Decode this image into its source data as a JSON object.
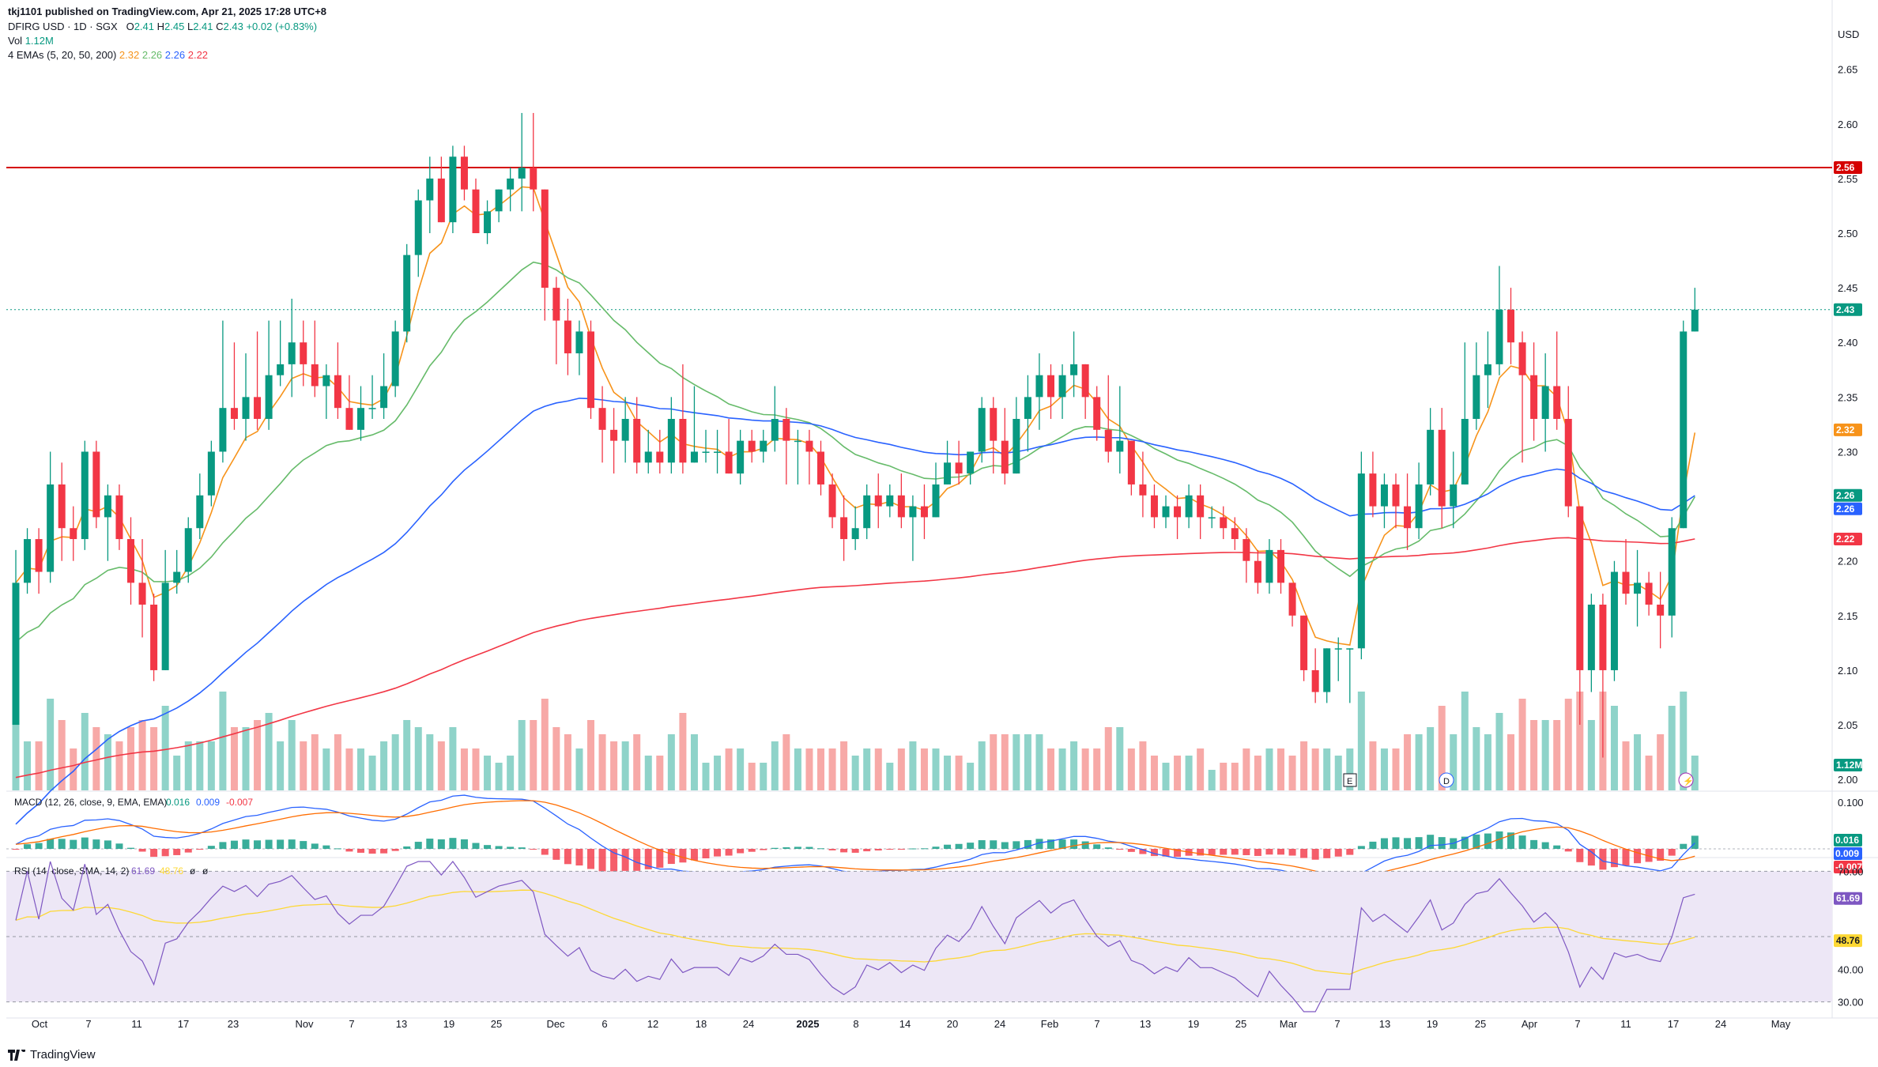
{
  "header": {
    "published": "tkj1101 published on TradingView.com, Apr 21, 2025 17:28 UTC+8",
    "symbol": "DFIRG USD · 1D · SGX",
    "o_label": "O",
    "o": "2.41",
    "h_label": "H",
    "h": "2.45",
    "l_label": "L",
    "l": "2.41",
    "c_label": "C",
    "c": "2.43",
    "change": "+0.02 (+0.83%)",
    "vol_label": "Vol",
    "vol": "1.12M",
    "emas_label": "4 EMAs (5, 20, 50, 200)",
    "ema_values": [
      "2.32",
      "2.26",
      "2.26",
      "2.22"
    ]
  },
  "currency": "USD",
  "footer": {
    "brand": "TradingView"
  },
  "colors": {
    "up": "#089981",
    "down": "#f23645",
    "up_vol": "#8fd3c9",
    "down_vol": "#f7a9a7",
    "ema5": "#f7931a",
    "ema20": "#66bb6a",
    "ema50": "#2962ff",
    "ema200": "#f23645",
    "hline": "#d50000",
    "rsi": "#7e57c2",
    "rsi_ma": "#fdd835",
    "rsi_band": "#ede7f6"
  },
  "chart_data": {
    "type": "candlestick",
    "ylim": [
      1.99,
      2.67
    ],
    "price_ticks": [
      "2.65",
      "2.60",
      "2.55",
      "2.50",
      "2.45",
      "2.40",
      "2.35",
      "2.30",
      "2.25",
      "2.20",
      "2.15",
      "2.10",
      "2.05",
      "2.00"
    ],
    "horizontal_line": 2.56,
    "last_price": 2.43,
    "x_ticks": [
      "Oct",
      "7",
      "11",
      "17",
      "23",
      "Nov",
      "7",
      "13",
      "19",
      "25",
      "Dec",
      "6",
      "12",
      "18",
      "24",
      "2025",
      "8",
      "14",
      "20",
      "24",
      "Feb",
      "7",
      "13",
      "19",
      "25",
      "Mar",
      "7",
      "13",
      "19",
      "25",
      "Apr",
      "7",
      "11",
      "17",
      "24",
      "May"
    ],
    "price_tags": [
      {
        "label": "2.56",
        "value": 2.56,
        "color": "#d50000"
      },
      {
        "label": "2.43",
        "value": 2.43,
        "color": "#089981"
      },
      {
        "label": "2.32",
        "value": 2.32,
        "color": "#f7931a"
      },
      {
        "label": "2.26",
        "value": 2.26,
        "color": "#089981"
      },
      {
        "label": "2.26",
        "value": 2.26,
        "color": "#2962ff"
      },
      {
        "label": "2.22",
        "value": 2.22,
        "color": "#f23645"
      },
      {
        "label": "1.12M",
        "value": 2.01,
        "color": "#089981"
      }
    ],
    "candles": [
      [
        2.05,
        2.21,
        2.05,
        2.18
      ],
      [
        2.18,
        2.23,
        2.17,
        2.22
      ],
      [
        2.22,
        2.23,
        2.17,
        2.19
      ],
      [
        2.19,
        2.3,
        2.18,
        2.27
      ],
      [
        2.27,
        2.29,
        2.2,
        2.23
      ],
      [
        2.23,
        2.25,
        2.2,
        2.22
      ],
      [
        2.22,
        2.31,
        2.21,
        2.3
      ],
      [
        2.3,
        2.31,
        2.23,
        2.24
      ],
      [
        2.24,
        2.27,
        2.2,
        2.26
      ],
      [
        2.26,
        2.27,
        2.21,
        2.22
      ],
      [
        2.22,
        2.24,
        2.16,
        2.18
      ],
      [
        2.18,
        2.22,
        2.13,
        2.16
      ],
      [
        2.16,
        2.17,
        2.09,
        2.1
      ],
      [
        2.1,
        2.21,
        2.1,
        2.18
      ],
      [
        2.18,
        2.21,
        2.17,
        2.19
      ],
      [
        2.19,
        2.24,
        2.18,
        2.23
      ],
      [
        2.23,
        2.28,
        2.22,
        2.26
      ],
      [
        2.26,
        2.31,
        2.25,
        2.3
      ],
      [
        2.3,
        2.42,
        2.29,
        2.34
      ],
      [
        2.34,
        2.4,
        2.32,
        2.33
      ],
      [
        2.33,
        2.39,
        2.31,
        2.35
      ],
      [
        2.35,
        2.41,
        2.32,
        2.33
      ],
      [
        2.33,
        2.42,
        2.32,
        2.37
      ],
      [
        2.37,
        2.42,
        2.36,
        2.38
      ],
      [
        2.38,
        2.44,
        2.35,
        2.4
      ],
      [
        2.4,
        2.42,
        2.36,
        2.38
      ],
      [
        2.38,
        2.42,
        2.35,
        2.36
      ],
      [
        2.36,
        2.38,
        2.33,
        2.37
      ],
      [
        2.37,
        2.4,
        2.33,
        2.34
      ],
      [
        2.34,
        2.37,
        2.32,
        2.32
      ],
      [
        2.32,
        2.36,
        2.31,
        2.34
      ],
      [
        2.34,
        2.37,
        2.33,
        2.34
      ],
      [
        2.34,
        2.39,
        2.33,
        2.36
      ],
      [
        2.36,
        2.42,
        2.35,
        2.41
      ],
      [
        2.41,
        2.49,
        2.4,
        2.48
      ],
      [
        2.48,
        2.54,
        2.46,
        2.53
      ],
      [
        2.53,
        2.57,
        2.5,
        2.55
      ],
      [
        2.55,
        2.57,
        2.51,
        2.51
      ],
      [
        2.51,
        2.58,
        2.5,
        2.57
      ],
      [
        2.57,
        2.58,
        2.53,
        2.54
      ],
      [
        2.54,
        2.55,
        2.5,
        2.5
      ],
      [
        2.5,
        2.53,
        2.49,
        2.52
      ],
      [
        2.52,
        2.54,
        2.51,
        2.54
      ],
      [
        2.54,
        2.56,
        2.52,
        2.55
      ],
      [
        2.55,
        2.61,
        2.52,
        2.56
      ],
      [
        2.56,
        2.61,
        2.52,
        2.54
      ],
      [
        2.54,
        2.54,
        2.42,
        2.45
      ],
      [
        2.45,
        2.46,
        2.38,
        2.42
      ],
      [
        2.42,
        2.44,
        2.37,
        2.39
      ],
      [
        2.39,
        2.42,
        2.37,
        2.41
      ],
      [
        2.41,
        2.42,
        2.33,
        2.34
      ],
      [
        2.34,
        2.36,
        2.29,
        2.32
      ],
      [
        2.32,
        2.34,
        2.28,
        2.31
      ],
      [
        2.31,
        2.35,
        2.29,
        2.33
      ],
      [
        2.33,
        2.35,
        2.28,
        2.29
      ],
      [
        2.29,
        2.32,
        2.28,
        2.3
      ],
      [
        2.3,
        2.32,
        2.28,
        2.29
      ],
      [
        2.29,
        2.35,
        2.28,
        2.33
      ],
      [
        2.33,
        2.38,
        2.28,
        2.29
      ],
      [
        2.29,
        2.36,
        2.29,
        2.3
      ],
      [
        2.3,
        2.32,
        2.29,
        2.3
      ],
      [
        2.3,
        2.32,
        2.28,
        2.3
      ],
      [
        2.3,
        2.33,
        2.28,
        2.28
      ],
      [
        2.28,
        2.32,
        2.27,
        2.31
      ],
      [
        2.31,
        2.32,
        2.29,
        2.3
      ],
      [
        2.3,
        2.32,
        2.29,
        2.31
      ],
      [
        2.31,
        2.36,
        2.3,
        2.33
      ],
      [
        2.33,
        2.34,
        2.27,
        2.31
      ],
      [
        2.31,
        2.32,
        2.27,
        2.31
      ],
      [
        2.31,
        2.32,
        2.27,
        2.3
      ],
      [
        2.3,
        2.31,
        2.26,
        2.27
      ],
      [
        2.27,
        2.28,
        2.23,
        2.24
      ],
      [
        2.24,
        2.26,
        2.2,
        2.22
      ],
      [
        2.22,
        2.25,
        2.21,
        2.23
      ],
      [
        2.23,
        2.27,
        2.22,
        2.26
      ],
      [
        2.26,
        2.28,
        2.23,
        2.25
      ],
      [
        2.25,
        2.27,
        2.24,
        2.26
      ],
      [
        2.26,
        2.28,
        2.23,
        2.24
      ],
      [
        2.24,
        2.26,
        2.2,
        2.25
      ],
      [
        2.25,
        2.27,
        2.22,
        2.24
      ],
      [
        2.24,
        2.29,
        2.24,
        2.27
      ],
      [
        2.27,
        2.31,
        2.27,
        2.29
      ],
      [
        2.29,
        2.31,
        2.27,
        2.28
      ],
      [
        2.28,
        2.3,
        2.27,
        2.3
      ],
      [
        2.3,
        2.35,
        2.29,
        2.34
      ],
      [
        2.34,
        2.35,
        2.28,
        2.31
      ],
      [
        2.31,
        2.34,
        2.27,
        2.28
      ],
      [
        2.28,
        2.35,
        2.28,
        2.33
      ],
      [
        2.33,
        2.37,
        2.3,
        2.35
      ],
      [
        2.35,
        2.39,
        2.32,
        2.37
      ],
      [
        2.37,
        2.38,
        2.33,
        2.35
      ],
      [
        2.35,
        2.38,
        2.33,
        2.37
      ],
      [
        2.37,
        2.41,
        2.35,
        2.38
      ],
      [
        2.38,
        2.38,
        2.33,
        2.35
      ],
      [
        2.35,
        2.36,
        2.31,
        2.32
      ],
      [
        2.32,
        2.37,
        2.29,
        2.3
      ],
      [
        2.3,
        2.36,
        2.28,
        2.31
      ],
      [
        2.31,
        2.31,
        2.26,
        2.27
      ],
      [
        2.27,
        2.3,
        2.24,
        2.26
      ],
      [
        2.26,
        2.27,
        2.23,
        2.24
      ],
      [
        2.24,
        2.26,
        2.23,
        2.25
      ],
      [
        2.25,
        2.26,
        2.22,
        2.24
      ],
      [
        2.24,
        2.27,
        2.23,
        2.26
      ],
      [
        2.26,
        2.27,
        2.22,
        2.24
      ],
      [
        2.24,
        2.25,
        2.23,
        2.24
      ],
      [
        2.24,
        2.25,
        2.22,
        2.23
      ],
      [
        2.23,
        2.24,
        2.21,
        2.22
      ],
      [
        2.22,
        2.23,
        2.18,
        2.2
      ],
      [
        2.2,
        2.21,
        2.17,
        2.18
      ],
      [
        2.18,
        2.22,
        2.17,
        2.21
      ],
      [
        2.21,
        2.22,
        2.17,
        2.18
      ],
      [
        2.18,
        2.18,
        2.14,
        2.15
      ],
      [
        2.15,
        2.15,
        2.09,
        2.1
      ],
      [
        2.1,
        2.12,
        2.07,
        2.08
      ],
      [
        2.08,
        2.12,
        2.07,
        2.12
      ],
      [
        2.12,
        2.13,
        2.09,
        2.12
      ],
      [
        2.12,
        2.12,
        2.07,
        2.12
      ],
      [
        2.12,
        2.3,
        2.11,
        2.28
      ],
      [
        2.28,
        2.3,
        2.24,
        2.25
      ],
      [
        2.25,
        2.28,
        2.23,
        2.27
      ],
      [
        2.27,
        2.28,
        2.23,
        2.25
      ],
      [
        2.25,
        2.28,
        2.21,
        2.23
      ],
      [
        2.23,
        2.29,
        2.22,
        2.27
      ],
      [
        2.27,
        2.34,
        2.26,
        2.32
      ],
      [
        2.32,
        2.34,
        2.23,
        2.25
      ],
      [
        2.25,
        2.3,
        2.23,
        2.27
      ],
      [
        2.27,
        2.4,
        2.27,
        2.33
      ],
      [
        2.33,
        2.4,
        2.32,
        2.37
      ],
      [
        2.37,
        2.41,
        2.34,
        2.38
      ],
      [
        2.38,
        2.47,
        2.37,
        2.43
      ],
      [
        2.43,
        2.45,
        2.38,
        2.4
      ],
      [
        2.4,
        2.41,
        2.29,
        2.37
      ],
      [
        2.37,
        2.4,
        2.31,
        2.33
      ],
      [
        2.33,
        2.39,
        2.3,
        2.36
      ],
      [
        2.36,
        2.41,
        2.32,
        2.33
      ],
      [
        2.33,
        2.36,
        2.24,
        2.25
      ],
      [
        2.25,
        2.25,
        2.05,
        2.1
      ],
      [
        2.1,
        2.17,
        2.08,
        2.16
      ],
      [
        2.16,
        2.17,
        2.02,
        2.1
      ],
      [
        2.1,
        2.2,
        2.09,
        2.19
      ],
      [
        2.19,
        2.22,
        2.16,
        2.17
      ],
      [
        2.17,
        2.21,
        2.14,
        2.18
      ],
      [
        2.18,
        2.19,
        2.15,
        2.16
      ],
      [
        2.16,
        2.19,
        2.12,
        2.15
      ],
      [
        2.15,
        2.24,
        2.13,
        2.23
      ],
      [
        2.23,
        2.42,
        2.23,
        2.41
      ],
      [
        2.41,
        2.45,
        2.41,
        2.43
      ]
    ],
    "ema_series": [
      {
        "name": "EMA 5",
        "color": "#f7931a"
      },
      {
        "name": "EMA 20",
        "color": "#66bb6a"
      },
      {
        "name": "EMA 50",
        "color": "#2962ff"
      },
      {
        "name": "EMA 200",
        "color": "#f23645"
      }
    ],
    "volume_markers": [
      "E",
      "D",
      "⚡"
    ],
    "macd": {
      "label": "MACD (12, 26, close, 9, EMA, EMA)",
      "values": [
        "0.016",
        "0.009",
        "-0.007"
      ],
      "ticks": [
        "0.100",
        "0.016",
        "0.009",
        "-0.007"
      ]
    },
    "rsi": {
      "label": "RSI (14, close, SMA, 14, 2)",
      "values": [
        "61.69",
        "48.76",
        "ø",
        "ø"
      ],
      "ticks": [
        "70.00",
        "61.69",
        "48.76",
        "40.00",
        "30.00"
      ],
      "ylim": [
        27,
        73
      ],
      "band": [
        30,
        70
      ]
    }
  }
}
